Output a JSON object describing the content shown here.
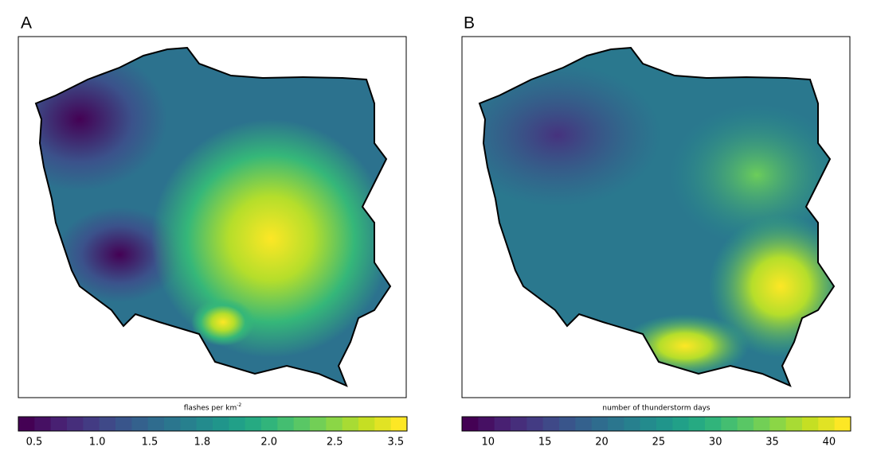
{
  "panels": [
    {
      "label": "A",
      "colorbar": {
        "title": "flashes per km",
        "title_superscript": "-2",
        "ticks": [
          {
            "value": 0.5,
            "label": "0.5"
          },
          {
            "value": 1.0,
            "label": "1.0"
          },
          {
            "value": 1.5,
            "label": "1.5"
          },
          {
            "value": 1.8,
            "label": "1.8"
          },
          {
            "value": 2.0,
            "label": "2.0"
          },
          {
            "value": 2.5,
            "label": "2.5"
          },
          {
            "value": 3.5,
            "label": "3.5"
          }
        ]
      }
    },
    {
      "label": "B",
      "colorbar": {
        "title": "number of thunderstorm days",
        "lim": [
          7.7,
          41.9
        ],
        "ticks": [
          10,
          15,
          20,
          25,
          30,
          35,
          40
        ]
      }
    }
  ]
}
